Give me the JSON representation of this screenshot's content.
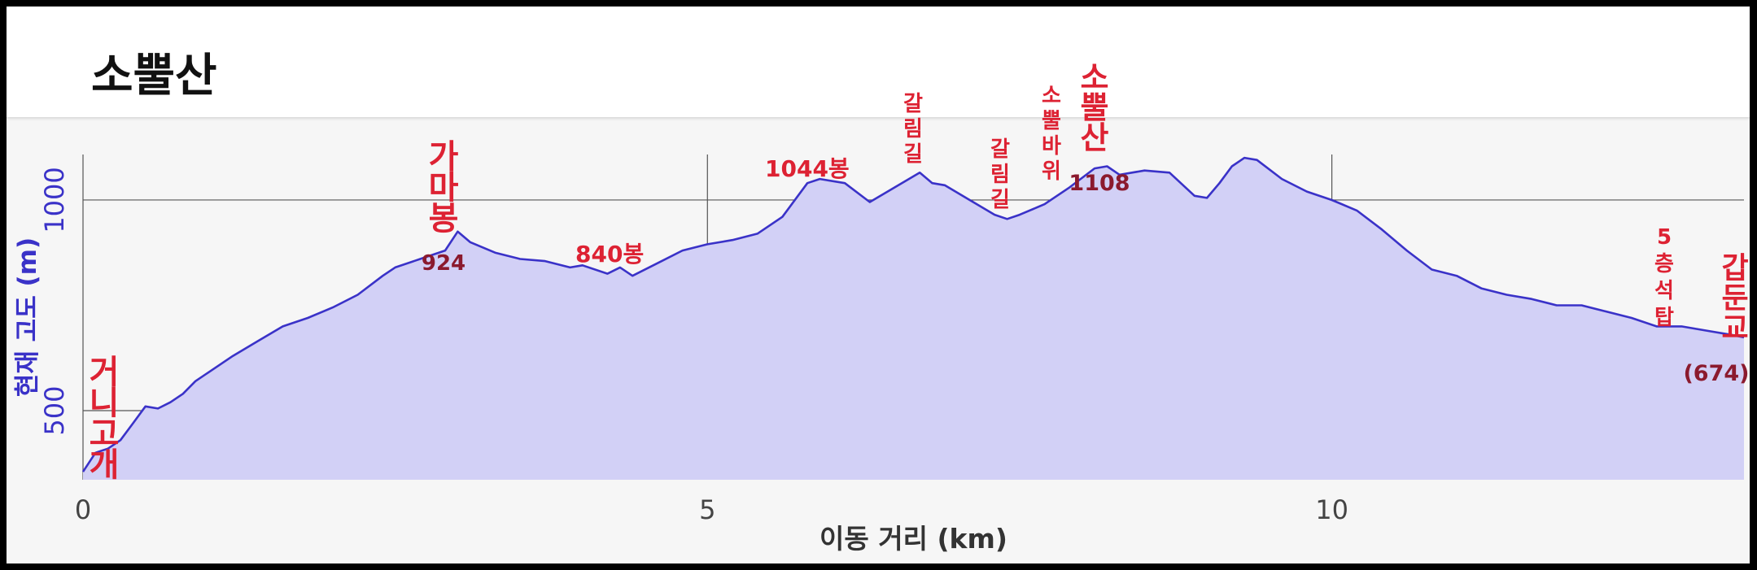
{
  "title": "소뿔산",
  "colors": {
    "line": "#3a32c8",
    "fill": "#d2d0f6",
    "annotation": "#dd2233",
    "elevation_label": "#8b1a2e",
    "y_axis_title": "#3a32c8",
    "x_axis_title": "#333333",
    "grid": "#555555"
  },
  "chart_data": {
    "type": "area",
    "title": "소뿔산",
    "xlabel": "이동 거리 (km)",
    "ylabel": "현재 고도 (m)",
    "xlim": [
      0,
      13.3
    ],
    "ylim": [
      336,
      1108
    ],
    "xticks": [
      0,
      5,
      10
    ],
    "yticks": [
      500,
      1000
    ],
    "grid": true,
    "series": [
      {
        "x": [
          0,
          0.1,
          0.2,
          0.3,
          0.4,
          0.5,
          0.6,
          0.7,
          0.8,
          0.9,
          1.0,
          1.2,
          1.4,
          1.6,
          1.8,
          2.0,
          2.2,
          2.4,
          2.5,
          2.7,
          2.9,
          3.0,
          3.1,
          3.3,
          3.5,
          3.7,
          3.9,
          4.0,
          4.2,
          4.3,
          4.4,
          4.6,
          4.8,
          5.0,
          5.2,
          5.4,
          5.6,
          5.8,
          5.9,
          6.1,
          6.3,
          6.5,
          6.7,
          6.8,
          6.9,
          7.1,
          7.3,
          7.4,
          7.5,
          7.7,
          7.9,
          8.1,
          8.2,
          8.3,
          8.5,
          8.7,
          8.9,
          9.0,
          9.1,
          9.2,
          9.3,
          9.4,
          9.6,
          9.8,
          10.0,
          10.2,
          10.4,
          10.6,
          10.8,
          11.0,
          11.2,
          11.4,
          11.6,
          11.8,
          12.0,
          12.2,
          12.4,
          12.6,
          12.8,
          13.0,
          13.2,
          13.3
        ],
        "y": [
          355,
          400,
          410,
          430,
          470,
          510,
          505,
          520,
          540,
          570,
          590,
          630,
          665,
          700,
          720,
          745,
          775,
          820,
          840,
          860,
          880,
          925,
          900,
          875,
          860,
          855,
          840,
          845,
          825,
          840,
          820,
          850,
          880,
          895,
          905,
          920,
          960,
          1040,
          1050,
          1040,
          995,
          1030,
          1065,
          1040,
          1035,
          1000,
          965,
          955,
          965,
          990,
          1030,
          1075,
          1080,
          1060,
          1070,
          1065,
          1010,
          1005,
          1040,
          1080,
          1100,
          1095,
          1050,
          1020,
          1000,
          975,
          930,
          880,
          835,
          820,
          790,
          775,
          765,
          750,
          750,
          735,
          720,
          700,
          700,
          690,
          680,
          674
        ]
      }
    ],
    "annotations": [
      {
        "name": "거니고개",
        "label": "거니고개",
        "x": 0.15,
        "y": 410,
        "vertical": true
      },
      {
        "name": "가마봉",
        "label": "가마봉",
        "x": 3.0,
        "y": 925,
        "vertical": true,
        "elevation": "924"
      },
      {
        "name": "840봉",
        "label": "840봉",
        "x": 4.3,
        "y": 840,
        "vertical": false
      },
      {
        "name": "1044봉",
        "label": "1044봉",
        "x": 5.9,
        "y": 1050,
        "vertical": false
      },
      {
        "name": "갈림길-1",
        "label": "갈림길",
        "x": 6.7,
        "y": 1065,
        "vertical": true
      },
      {
        "name": "갈림길-2",
        "label": "갈림길",
        "x": 7.4,
        "y": 955,
        "vertical": true
      },
      {
        "name": "소뿔바위",
        "label": "소뿔바위",
        "x": 7.9,
        "y": 1030,
        "vertical": true
      },
      {
        "name": "소뿔산",
        "label": "소뿔산",
        "x": 8.2,
        "y": 1080,
        "vertical": true,
        "elevation": "1108"
      },
      {
        "name": "5층석탑",
        "label": "5층석탑",
        "x": 12.6,
        "y": 700,
        "vertical": true
      },
      {
        "name": "갑둔교",
        "label": "갑둔교",
        "x": 13.3,
        "y": 674,
        "vertical": true,
        "elevation": "(674)"
      }
    ]
  }
}
